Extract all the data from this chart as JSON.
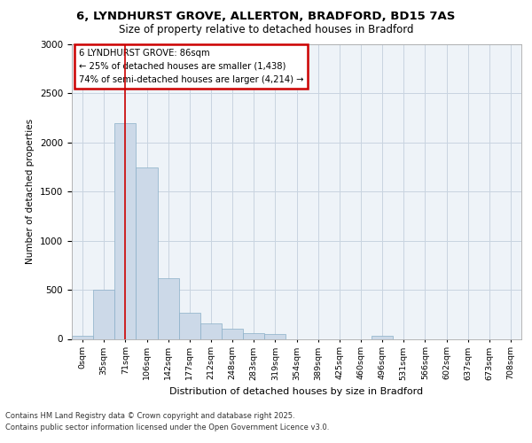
{
  "title_line1": "6, LYNDHURST GROVE, ALLERTON, BRADFORD, BD15 7AS",
  "title_line2": "Size of property relative to detached houses in Bradford",
  "xlabel": "Distribution of detached houses by size in Bradford",
  "ylabel": "Number of detached properties",
  "categories": [
    "0sqm",
    "35sqm",
    "71sqm",
    "106sqm",
    "142sqm",
    "177sqm",
    "212sqm",
    "248sqm",
    "283sqm",
    "319sqm",
    "354sqm",
    "389sqm",
    "425sqm",
    "460sqm",
    "496sqm",
    "531sqm",
    "566sqm",
    "602sqm",
    "637sqm",
    "673sqm",
    "708sqm"
  ],
  "bar_values": [
    30,
    500,
    2200,
    1750,
    620,
    270,
    160,
    100,
    60,
    50,
    0,
    0,
    0,
    0,
    30,
    0,
    0,
    0,
    0,
    0,
    0
  ],
  "bar_color": "#ccd9e8",
  "bar_edge_color": "#8aafc8",
  "vline_color": "#cc0000",
  "vline_x_index": 2,
  "annotation_title": "6 LYNDHURST GROVE: 86sqm",
  "annotation_line1": "← 25% of detached houses are smaller (1,438)",
  "annotation_line2": "74% of semi-detached houses are larger (4,214) →",
  "annotation_box_color": "#ffffff",
  "annotation_border_color": "#cc0000",
  "ylim": [
    0,
    3000
  ],
  "yticks": [
    0,
    500,
    1000,
    1500,
    2000,
    2500,
    3000
  ],
  "grid_color": "#c8d4e0",
  "background_color": "#eef3f8",
  "footnote_line1": "Contains HM Land Registry data © Crown copyright and database right 2025.",
  "footnote_line2": "Contains public sector information licensed under the Open Government Licence v3.0."
}
